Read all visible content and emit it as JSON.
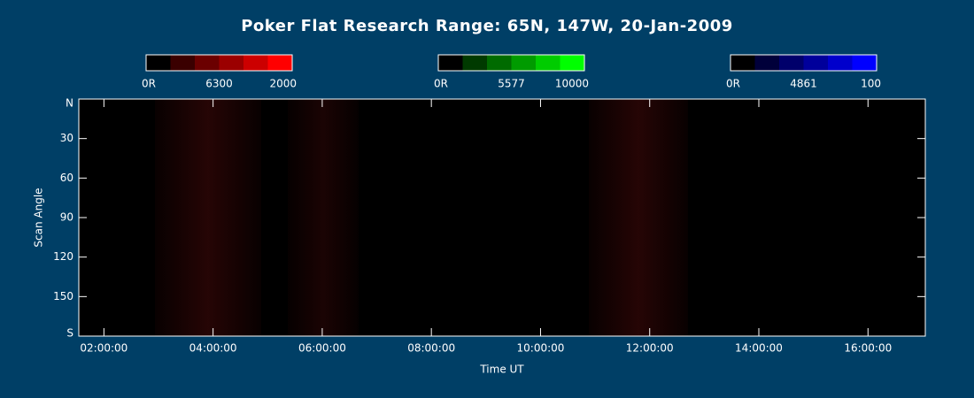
{
  "chart_data": {
    "type": "keogram",
    "title": "Poker Flat Research Range: 65N, 147W, 20-Jan-2009",
    "x_label": "Time UT",
    "y_label": "Scan Angle",
    "xlim": [
      1.54,
      17.05
    ],
    "xticks": [
      {
        "value": 2,
        "label": "02:00:00"
      },
      {
        "value": 4,
        "label": "04:00:00"
      },
      {
        "value": 6,
        "label": "06:00:00"
      },
      {
        "value": 8,
        "label": "08:00:00"
      },
      {
        "value": 10,
        "label": "10:00:00"
      },
      {
        "value": 12,
        "label": "12:00:00"
      },
      {
        "value": 14,
        "label": "14:00:00"
      },
      {
        "value": 16,
        "label": "16:00:00"
      }
    ],
    "ylim": [
      0,
      180
    ],
    "yticks": [
      {
        "value": 0,
        "label": "N"
      },
      30,
      60,
      90,
      120,
      150,
      {
        "value": 180,
        "label": "S"
      }
    ],
    "colorbars": [
      {
        "name": "6300",
        "ticks": [
          {
            "value": 0,
            "label": "0R"
          },
          2000
        ],
        "colors": [
          "#000000",
          "#3a0000",
          "#6b0000",
          "#9b0000",
          "#cc0000",
          "#ff0000"
        ]
      },
      {
        "name": "5577",
        "ticks": [
          {
            "value": 0,
            "label": "0R"
          },
          10000
        ],
        "colors": [
          "#000000",
          "#003a00",
          "#006b00",
          "#009b00",
          "#00cc00",
          "#00ff00"
        ]
      },
      {
        "name": "4861",
        "ticks": [
          {
            "value": 0,
            "label": "0R"
          },
          100
        ],
        "colors": [
          "#000000",
          "#00003a",
          "#00006b",
          "#00009b",
          "#0000cc",
          "#0000ff"
        ]
      }
    ]
  }
}
